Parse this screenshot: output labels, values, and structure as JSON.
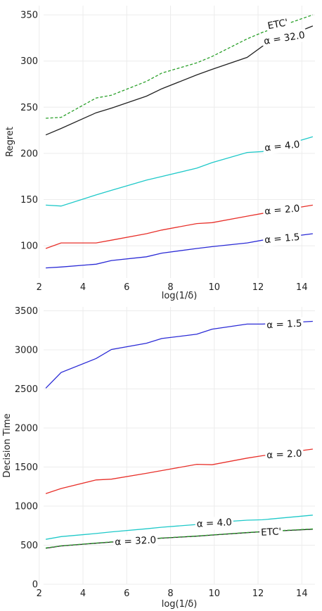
{
  "chart_data": [
    {
      "type": "line",
      "xlabel": "log(1/δ)",
      "ylabel": "Regret",
      "xlim": [
        2.2,
        14.6
      ],
      "ylim": [
        65,
        360
      ],
      "xticks": [
        2,
        4,
        6,
        8,
        10,
        12,
        14
      ],
      "yticks": [
        100,
        150,
        200,
        250,
        300,
        350
      ],
      "grid": true,
      "series": [
        {
          "name": "α = 1.5",
          "color": "#2b2bd6",
          "dashed": false,
          "x": [
            2.3,
            3.0,
            4.6,
            5.3,
            6.9,
            7.6,
            9.2,
            9.9,
            11.5,
            12.2,
            14.5
          ],
          "y": [
            76,
            77,
            80,
            84,
            88,
            92,
            97,
            99,
            103,
            106,
            113
          ]
        },
        {
          "name": "α = 2.0",
          "color": "#e8302a",
          "dashed": false,
          "x": [
            2.3,
            3.0,
            4.6,
            5.3,
            6.9,
            7.6,
            9.2,
            9.9,
            11.5,
            12.2,
            14.5
          ],
          "y": [
            97,
            103,
            103,
            106,
            113,
            117,
            124,
            125,
            132,
            135,
            144
          ]
        },
        {
          "name": "α = 4.0",
          "color": "#1fc9c9",
          "dashed": false,
          "x": [
            2.3,
            3.0,
            4.6,
            5.3,
            6.9,
            7.6,
            9.2,
            9.9,
            11.5,
            12.2,
            14.5
          ],
          "y": [
            144,
            143,
            155,
            160,
            171,
            175,
            184,
            190,
            201,
            202,
            218
          ]
        },
        {
          "name": "α = 32.0",
          "color": "#222222",
          "dashed": false,
          "x": [
            2.3,
            3.0,
            4.6,
            5.3,
            6.9,
            7.6,
            9.2,
            9.9,
            11.5,
            12.2,
            14.5
          ],
          "y": [
            220,
            227,
            244,
            249,
            262,
            270,
            285,
            291,
            304,
            316,
            338
          ]
        },
        {
          "name": "ETC'",
          "color": "#2aa02a",
          "dashed": true,
          "x": [
            2.3,
            3.0,
            4.6,
            5.3,
            6.9,
            7.6,
            9.2,
            9.9,
            11.5,
            12.2,
            14.5
          ],
          "y": [
            238,
            239,
            260,
            263,
            278,
            287,
            298,
            305,
            324,
            331,
            350
          ]
        }
      ],
      "labels": [
        {
          "series": "α = 1.5",
          "x": 13.1,
          "y": 108,
          "rot": -5
        },
        {
          "series": "α = 2.0",
          "x": 13.1,
          "y": 139,
          "rot": -5
        },
        {
          "series": "α = 4.0",
          "x": 13.1,
          "y": 208,
          "rot": -6
        },
        {
          "series": "α = 32.0",
          "x": 13.2,
          "y": 325,
          "rot": -9
        },
        {
          "series": "ETC'",
          "x": 12.9,
          "y": 340,
          "rot": -11
        }
      ]
    },
    {
      "type": "line",
      "xlabel": "log(1/δ)",
      "ylabel": "Decision Time",
      "xlim": [
        2.2,
        14.6
      ],
      "ylim": [
        0,
        3550
      ],
      "xticks": [
        2,
        4,
        6,
        8,
        10,
        12,
        14
      ],
      "yticks": [
        0,
        500,
        1000,
        1500,
        2000,
        2500,
        3000,
        3500
      ],
      "grid": true,
      "series": [
        {
          "name": "α = 1.5",
          "color": "#2b2bd6",
          "dashed": false,
          "x": [
            2.3,
            3.0,
            4.6,
            5.3,
            6.9,
            7.6,
            9.2,
            9.9,
            11.5,
            12.2,
            14.5
          ],
          "y": [
            2510,
            2710,
            2890,
            3005,
            3085,
            3145,
            3200,
            3265,
            3330,
            3330,
            3365
          ]
        },
        {
          "name": "α = 2.0",
          "color": "#e8302a",
          "dashed": false,
          "x": [
            2.3,
            3.0,
            4.6,
            5.3,
            6.9,
            7.6,
            9.2,
            9.9,
            11.5,
            12.2,
            14.5
          ],
          "y": [
            1160,
            1225,
            1335,
            1345,
            1420,
            1455,
            1535,
            1530,
            1615,
            1645,
            1730
          ]
        },
        {
          "name": "α = 4.0",
          "color": "#1fc9c9",
          "dashed": false,
          "x": [
            2.3,
            3.0,
            4.6,
            5.3,
            6.9,
            7.6,
            9.2,
            9.9,
            11.5,
            12.2,
            14.5
          ],
          "y": [
            575,
            610,
            650,
            670,
            710,
            730,
            765,
            790,
            820,
            825,
            885
          ]
        },
        {
          "name": "α = 32.0",
          "color": "#222222",
          "dashed": false,
          "x": [
            2.3,
            3.0,
            4.6,
            5.3,
            6.9,
            7.6,
            9.2,
            9.9,
            11.5,
            12.2,
            14.5
          ],
          "y": [
            460,
            490,
            525,
            540,
            575,
            590,
            615,
            630,
            660,
            672,
            705
          ]
        },
        {
          "name": "ETC'",
          "color": "#2aa02a",
          "dashed": true,
          "x": [
            2.3,
            3.0,
            4.6,
            5.3,
            6.9,
            7.6,
            9.2,
            9.9,
            11.5,
            12.2,
            14.5
          ],
          "y": [
            465,
            492,
            527,
            542,
            577,
            592,
            617,
            632,
            662,
            674,
            708
          ]
        }
      ],
      "labels": [
        {
          "series": "α = 1.5",
          "x": 13.2,
          "y": 3330,
          "rot": -3
        },
        {
          "series": "α = 2.0",
          "x": 13.2,
          "y": 1665,
          "rot": -3
        },
        {
          "series": "α = 4.0",
          "x": 10.0,
          "y": 785,
          "rot": -3
        },
        {
          "series": "α = 32.0",
          "x": 6.4,
          "y": 555,
          "rot": -3
        },
        {
          "series": "ETC'",
          "x": 12.6,
          "y": 670,
          "rot": -3
        }
      ]
    }
  ]
}
